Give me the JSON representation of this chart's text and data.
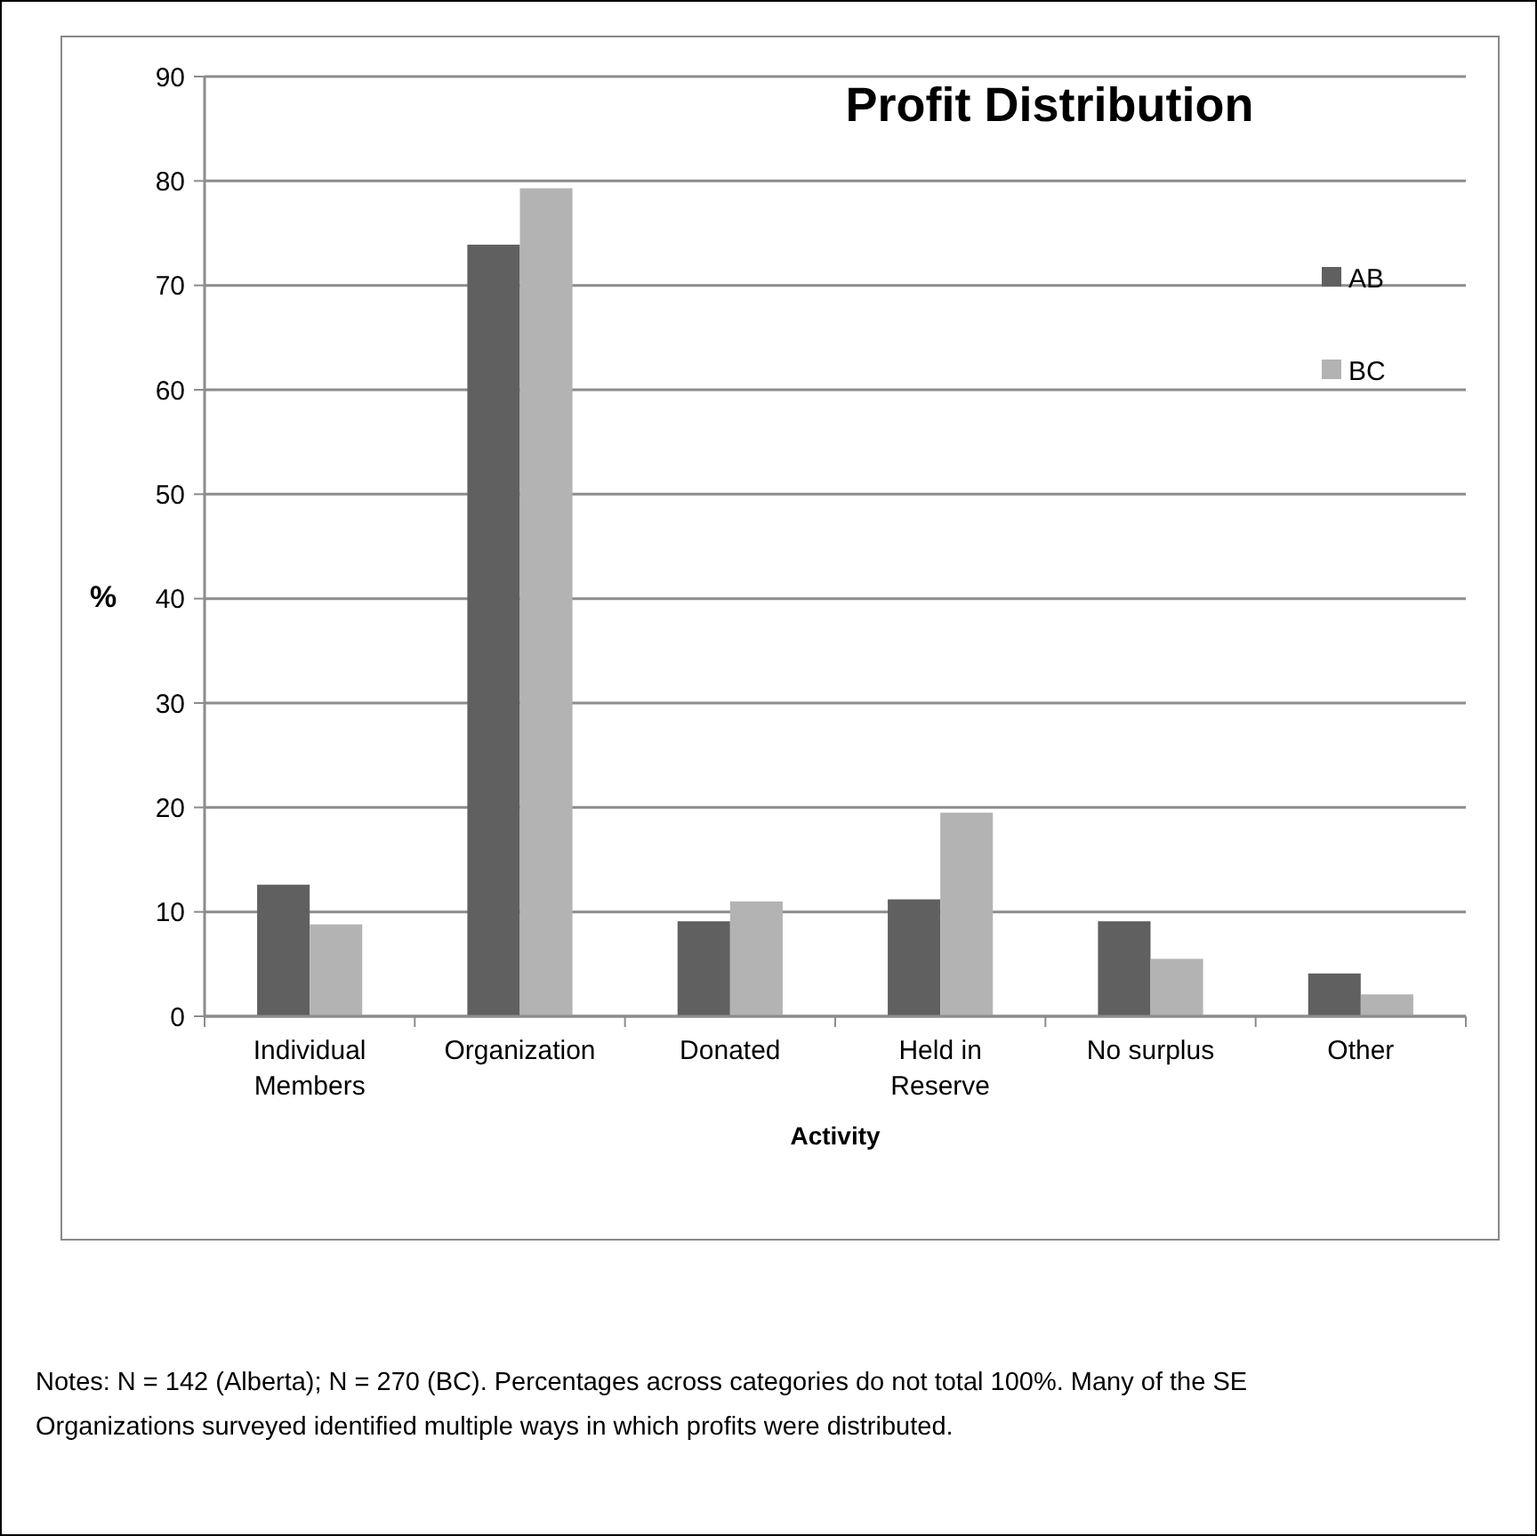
{
  "chart_data": {
    "type": "bar",
    "title": "Profit Distribution",
    "xlabel": "Activity",
    "ylabel": "%",
    "categories": [
      "Individual Members",
      "Organization",
      "Donated",
      "Held in Reserve",
      "No surplus",
      "Other"
    ],
    "series": [
      {
        "name": "AB",
        "color": "#606060",
        "values": [
          12.6,
          73.9,
          9.1,
          11.2,
          9.1,
          4.1
        ]
      },
      {
        "name": "BC",
        "color": "#b3b3b3",
        "values": [
          8.8,
          79.3,
          11.0,
          19.5,
          5.5,
          2.1
        ]
      }
    ],
    "ylim": [
      0,
      90
    ],
    "yticks": [
      0,
      10,
      20,
      30,
      40,
      50,
      60,
      70,
      80,
      90
    ],
    "grid": "y",
    "legend": "top right",
    "annotations": [
      "Notes: N = 142 (Alberta); N = 270 (BC). Percentages across categories do not total 100%. Many of the SE Organizations surveyed identified multiple ways in which profits were distributed."
    ]
  }
}
